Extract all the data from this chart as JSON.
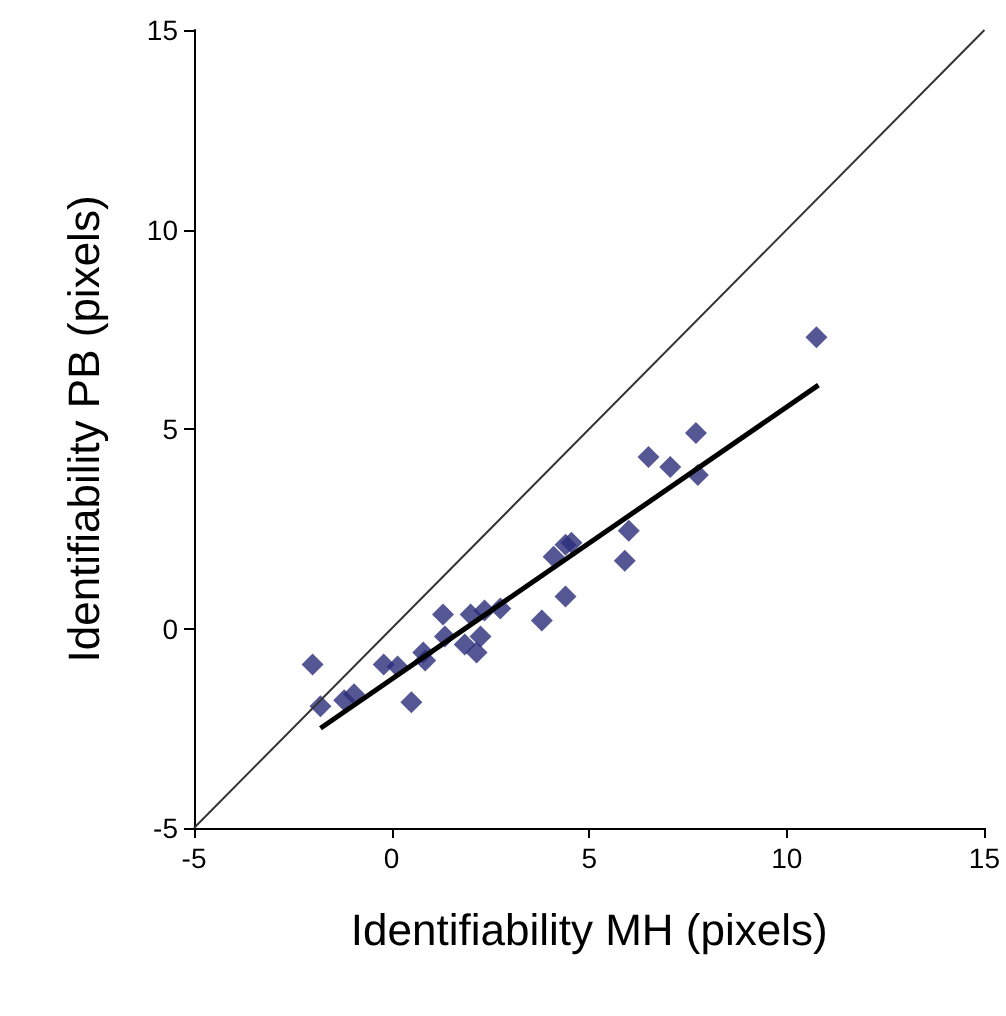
{
  "chart_data": {
    "type": "scatter",
    "xlabel": "Identifiability MH (pixels)",
    "ylabel": "Identifiability PB (pixels)",
    "xlim": [
      -5,
      15
    ],
    "xticks": [
      -5,
      0,
      5,
      10,
      15
    ],
    "ylim": [
      -5,
      15
    ],
    "yticks": [
      -5,
      0,
      5,
      10,
      15
    ],
    "grid": false,
    "marker": "diamond",
    "series": [
      {
        "color": "#2b2d7a",
        "x": [
          -2.0,
          -1.8,
          -1.2,
          -0.95,
          -0.2,
          0.15,
          0.5,
          0.8,
          0.85,
          1.3,
          1.35,
          1.85,
          2.0,
          2.15,
          2.25,
          2.35,
          2.75,
          3.8,
          4.4,
          4.1,
          4.55,
          4.4,
          5.9,
          6.0,
          6.5,
          7.05,
          7.7,
          7.75,
          10.75
        ],
        "values": [
          -0.9,
          -1.95,
          -1.8,
          -1.65,
          -0.9,
          -0.95,
          -1.85,
          -0.6,
          -0.8,
          0.35,
          -0.2,
          -0.4,
          0.35,
          -0.6,
          -0.2,
          0.45,
          0.5,
          0.2,
          0.8,
          1.8,
          2.15,
          2.1,
          1.7,
          2.45,
          4.3,
          4.05,
          4.9,
          3.85,
          7.3
        ]
      },
      {
        "type": "line",
        "color": "#000000",
        "x": [
          -1.8,
          10.8
        ],
        "values": [
          -2.5,
          6.1
        ],
        "marker": "none",
        "line_style": "solid"
      },
      {
        "type": "line",
        "color": "#333333",
        "x": [
          -5,
          15
        ],
        "values": [
          -5,
          15
        ],
        "marker": "none",
        "line_style": "solid"
      }
    ]
  }
}
